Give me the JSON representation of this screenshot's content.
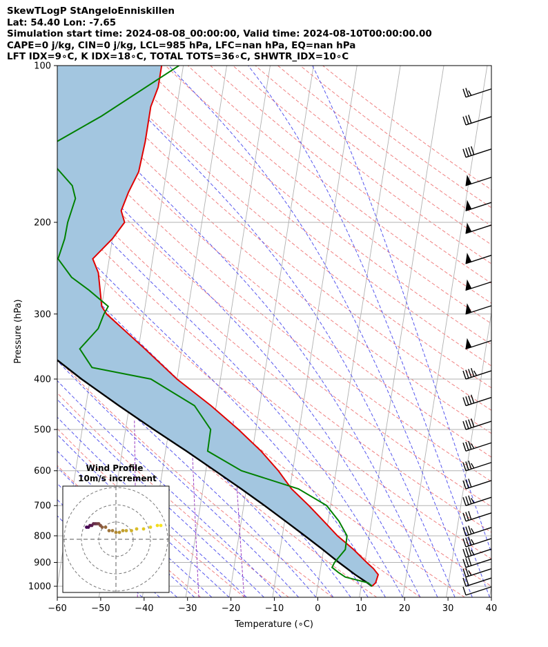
{
  "header": {
    "line1": "SkewTLogP StAngeloEnniskillen",
    "line2": "Lat: 54.40   Lon: -7.65",
    "line3": "Simulation start time: 2024-08-08_00:00:00, Valid time: 2024-08-10T00:00:00.00",
    "line4": "CAPE=0 j/kg, CIN=0 j/kg, LCL=985 hPa, LFC=nan hPa, EQ=nan hPa",
    "line5": "LFT IDX=9∘C, K IDX=18∘C, TOTAL TOTS=36∘C, SHWTR_IDX=10∘C"
  },
  "chart_data": {
    "type": "skew-t log-p",
    "xlabel": "Temperature (∘C)",
    "ylabel": "Pressure (hPa)",
    "xlim": [
      -60,
      40
    ],
    "ylim": [
      1050,
      100
    ],
    "x_ticks": [
      -60,
      -50,
      -40,
      -30,
      -20,
      -10,
      0,
      10,
      20,
      30,
      40
    ],
    "x_tick_labels": [
      "−60",
      "−50",
      "−40",
      "−30",
      "−20",
      "−10",
      "0",
      "10",
      "20",
      "30",
      "40"
    ],
    "y_ticks": [
      1000,
      900,
      800,
      700,
      600,
      500,
      400,
      300,
      200,
      100
    ],
    "y_tick_labels": [
      "1000",
      "900",
      "800",
      "700",
      "600",
      "500",
      "400",
      "300",
      "200",
      "100"
    ],
    "grid": true,
    "colors": {
      "temperature": "#e00000",
      "dewpoint": "#008000",
      "parcel": "#000000",
      "cape_fill": "#a3c6e0",
      "dry_adiabat": "#f08080",
      "moist_adiabat": "#5555ee",
      "mixing_ratio": "#9b3fc2",
      "isotherm": "#b0b0b0"
    },
    "temperature": {
      "p": [
        1000,
        985,
        950,
        925,
        900,
        850,
        800,
        750,
        700,
        650,
        600,
        550,
        500,
        450,
        400,
        350,
        300,
        290,
        250,
        235,
        215,
        200,
        190,
        175,
        160,
        140,
        120,
        110,
        100
      ],
      "t": [
        12.5,
        13.2,
        13.5,
        12.2,
        10.4,
        6.9,
        2.7,
        -1.0,
        -5.0,
        -9.6,
        -13.3,
        -18.0,
        -24.0,
        -31.2,
        -40.0,
        -48.5,
        -58.6,
        -60.0,
        -62.0,
        -63.8,
        -60.0,
        -57.8,
        -59.0,
        -58.0,
        -56.4,
        -56.0,
        -56.0,
        -55.0,
        -55.0
      ]
    },
    "dewpoint": {
      "p": [
        1000,
        985,
        960,
        940,
        920,
        900,
        850,
        800,
        750,
        700,
        650,
        600,
        550,
        500,
        450,
        400,
        380,
        350,
        320,
        300,
        290,
        270,
        255,
        235,
        215,
        200,
        180,
        170,
        150,
        140,
        125,
        100
      ],
      "td": [
        12.5,
        11.5,
        6.0,
        4.2,
        2.6,
        3.0,
        5.0,
        4.9,
        2.5,
        -0.9,
        -8.0,
        -21.8,
        -30.3,
        -30.4,
        -35.0,
        -46.0,
        -60.0,
        -63.5,
        -60.0,
        -59.2,
        -58.5,
        -63.5,
        -68.0,
        -71.8,
        -71.0,
        -70.9,
        -70.0,
        -71.2,
        -78.0,
        -76.4,
        -67.0,
        -51.0
      ]
    },
    "parcel": {
      "p": [
        1000,
        985,
        950,
        900,
        850,
        800,
        750,
        700,
        650,
        600,
        550,
        500,
        450,
        400,
        350,
        300,
        250,
        200,
        150,
        100
      ],
      "t": [
        12.5,
        11.3,
        8.2,
        4.0,
        -0.2,
        -4.8,
        -9.8,
        -15.2,
        -21.2,
        -27.9,
        -35.2,
        -43.5,
        -52.4,
        -62.0,
        -72.0,
        -83.0,
        -94.8,
        -108.0,
        -123.0,
        -143.0
      ]
    },
    "wind_barbs": {
      "p": [
        1040,
        1000,
        960,
        920,
        880,
        840,
        800,
        750,
        700,
        650,
        600,
        550,
        500,
        450,
        400,
        350,
        300,
        270,
        240,
        210,
        190,
        170,
        150,
        130,
        115
      ],
      "speed_kt": [
        10,
        20,
        25,
        30,
        35,
        35,
        35,
        30,
        35,
        30,
        35,
        35,
        40,
        40,
        45,
        50,
        50,
        50,
        50,
        50,
        50,
        50,
        40,
        30,
        25
      ],
      "direction": "westerly"
    },
    "hodograph": {
      "title": "Wind Profile",
      "subtitle": "10m/s increment",
      "rings_ms": [
        10,
        20,
        30
      ],
      "u": [
        26,
        24,
        20,
        16,
        12,
        9,
        6,
        4,
        2,
        0,
        -2,
        -4,
        -6,
        -8,
        -9,
        -10,
        -11,
        -12,
        -13,
        -14,
        -15,
        -16,
        -17
      ],
      "v": [
        8,
        8,
        7,
        6,
        6,
        5,
        5,
        5,
        4,
        4,
        5,
        5,
        7,
        7,
        8,
        9,
        9,
        9,
        9,
        8,
        8,
        7,
        7
      ]
    }
  }
}
